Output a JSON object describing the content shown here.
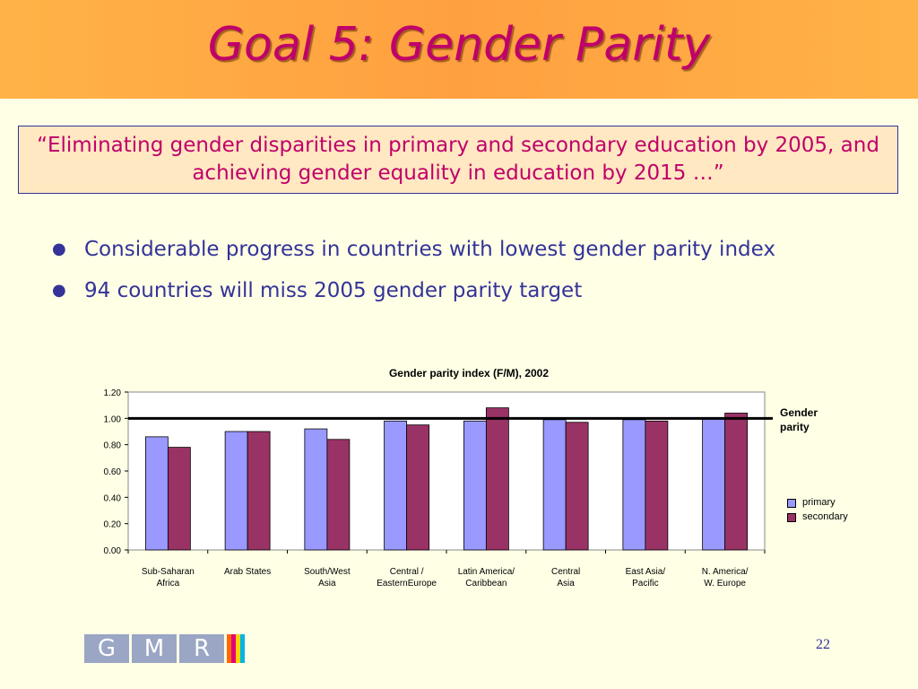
{
  "slide": {
    "title": "Goal 5: Gender Parity",
    "quote": "“Eliminating gender disparities in primary and secondary education by 2005, and achieving gender equality in education by 2015 …”",
    "bullets": [
      "Considerable progress in countries with lowest gender parity index",
      "94 countries will miss 2005 gender parity target"
    ],
    "page_number": "22",
    "logo_letters": [
      "G",
      "M",
      "R"
    ]
  },
  "colors": {
    "title": "#C0006A",
    "header_bg": "#FFA040",
    "slide_bg": "#FFFFE6",
    "text_blue": "#333399",
    "primary": "#9999FF",
    "secondary": "#993366"
  },
  "chart_data": {
    "type": "bar",
    "title": "Gender parity index (F/M), 2002",
    "categories": [
      "Sub-Saharan Africa",
      "Arab States",
      "South/West Asia",
      "Central / EasternEurope",
      "Latin America/ Caribbean",
      "Central Asia",
      "East Asia/ Pacific",
      "N. America/ W. Europe"
    ],
    "category_lines": [
      [
        "Sub-Saharan",
        "Africa"
      ],
      [
        "Arab States",
        ""
      ],
      [
        "South/West",
        "Asia"
      ],
      [
        "Central /",
        "EasternEurope"
      ],
      [
        "Latin America/",
        "Caribbean"
      ],
      [
        "Central",
        "Asia"
      ],
      [
        "East Asia/",
        "Pacific"
      ],
      [
        "N. America/",
        "W. Europe"
      ]
    ],
    "series": [
      {
        "name": "primary",
        "values": [
          0.86,
          0.9,
          0.92,
          0.98,
          0.98,
          0.99,
          0.99,
          1.0
        ]
      },
      {
        "name": "secondary",
        "values": [
          0.78,
          0.9,
          0.84,
          0.95,
          1.08,
          0.97,
          0.98,
          1.04
        ]
      }
    ],
    "reference_line": {
      "value": 1.0,
      "label": "Gender parity"
    },
    "ylim": [
      0,
      1.2
    ],
    "yticks": [
      "0.00",
      "0.20",
      "0.40",
      "0.60",
      "0.80",
      "1.00",
      "1.20"
    ],
    "grid": false,
    "legend_position": "right"
  }
}
